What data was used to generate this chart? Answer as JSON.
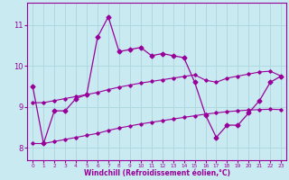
{
  "xlabel": "Windchill (Refroidissement éolien,°C)",
  "bg_color": "#c8eaf0",
  "line_color": "#990099",
  "grid_color": "#b0d8e0",
  "xlim": [
    -0.5,
    23.5
  ],
  "ylim": [
    7.7,
    11.55
  ],
  "xticks": [
    0,
    1,
    2,
    3,
    4,
    5,
    6,
    7,
    8,
    9,
    10,
    11,
    12,
    13,
    14,
    15,
    16,
    17,
    18,
    19,
    20,
    21,
    22,
    23
  ],
  "yticks": [
    8,
    9,
    10,
    11
  ],
  "main_x": [
    0,
    1,
    2,
    3,
    4,
    5,
    6,
    7,
    8,
    9,
    10,
    11,
    12,
    13,
    14,
    15,
    16,
    17,
    18,
    19,
    20,
    21,
    22,
    23
  ],
  "main_y": [
    9.5,
    8.1,
    8.9,
    8.9,
    9.2,
    9.3,
    10.7,
    11.2,
    10.35,
    10.4,
    10.45,
    10.25,
    10.3,
    10.25,
    10.2,
    9.6,
    8.8,
    8.25,
    8.55,
    8.55,
    8.85,
    9.15,
    9.6,
    9.75
  ],
  "upper_x": [
    0,
    1,
    2,
    3,
    4,
    5,
    6,
    7,
    8,
    9,
    10,
    11,
    12,
    13,
    14,
    15,
    16,
    17,
    18,
    19,
    20,
    21,
    22,
    23
  ],
  "upper_y": [
    9.1,
    9.1,
    9.15,
    9.2,
    9.25,
    9.3,
    9.35,
    9.42,
    9.48,
    9.53,
    9.58,
    9.62,
    9.66,
    9.7,
    9.74,
    9.78,
    9.65,
    9.6,
    9.7,
    9.75,
    9.8,
    9.85,
    9.87,
    9.75
  ],
  "lower_x": [
    0,
    1,
    2,
    3,
    4,
    5,
    6,
    7,
    8,
    9,
    10,
    11,
    12,
    13,
    14,
    15,
    16,
    17,
    18,
    19,
    20,
    21,
    22,
    23
  ],
  "lower_y": [
    8.1,
    8.1,
    8.15,
    8.2,
    8.25,
    8.3,
    8.35,
    8.42,
    8.48,
    8.53,
    8.58,
    8.62,
    8.66,
    8.7,
    8.74,
    8.78,
    8.82,
    8.85,
    8.88,
    8.9,
    8.92,
    8.93,
    8.94,
    8.93
  ]
}
